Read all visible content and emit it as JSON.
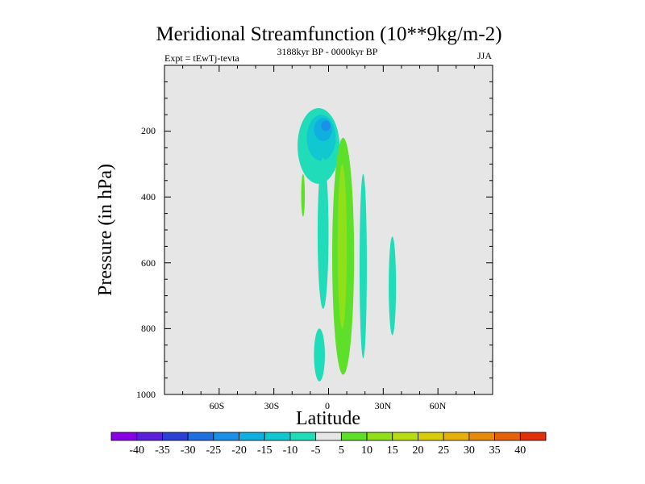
{
  "chart_data": {
    "type": "contour",
    "title": "Meridional Streamfunction (10**9kg/m-2)",
    "experiment_label": "Expt = tEwTj-tevta",
    "period_label": "3188kyr BP - 0000kyr BP",
    "season_label": "JJA",
    "xlabel": "Latitude",
    "ylabel": "Pressure (in hPa)",
    "xlim": [
      -90,
      90
    ],
    "ylim": [
      1000,
      0
    ],
    "x_ticks": [
      {
        "value": -60,
        "label": "60S"
      },
      {
        "value": -30,
        "label": "30S"
      },
      {
        "value": 0,
        "label": "0"
      },
      {
        "value": 30,
        "label": "30N"
      },
      {
        "value": 60,
        "label": "60N"
      }
    ],
    "y_ticks": [
      {
        "value": 200,
        "label": "200"
      },
      {
        "value": 400,
        "label": "400"
      },
      {
        "value": 600,
        "label": "600"
      },
      {
        "value": 800,
        "label": "800"
      },
      {
        "value": 1000,
        "label": "1000"
      }
    ],
    "background_color": "#e6e6e6",
    "colorbar": {
      "labels": [
        "-40",
        "-35",
        "-30",
        "-25",
        "-20",
        "-15",
        "-10",
        "-5",
        "5",
        "10",
        "15",
        "20",
        "25",
        "30",
        "35",
        "40"
      ],
      "colors": [
        "#8a00e6",
        "#5b1fd9",
        "#2e3fd6",
        "#1f6fe0",
        "#1a90e6",
        "#0fb0e0",
        "#12c8d0",
        "#20dcb8",
        "#e6e6e6",
        "#5ee02a",
        "#8fe01a",
        "#b8dc12",
        "#d8cc0a",
        "#e6b00a",
        "#e68a0a",
        "#e6620a",
        "#e0300a"
      ]
    },
    "regions": [
      {
        "value": -7.5,
        "lat_range": [
          -17,
          6
        ],
        "p_range": [
          130,
          360
        ],
        "desc": "upper tropical negative cell"
      },
      {
        "value": -12.5,
        "lat_range": [
          -12,
          4
        ],
        "p_range": [
          150,
          290
        ]
      },
      {
        "value": -17.5,
        "lat_range": [
          -8,
          2
        ],
        "p_range": [
          160,
          230
        ]
      },
      {
        "value": -22.5,
        "lat_range": [
          -4,
          1
        ],
        "p_range": [
          168,
          200
        ]
      },
      {
        "value": -7.5,
        "lat_range": [
          -6,
          0
        ],
        "p_range": [
          280,
          740
        ],
        "desc": "southern column negative"
      },
      {
        "value": 7.5,
        "lat_range": [
          2,
          14
        ],
        "p_range": [
          220,
          940
        ],
        "desc": "equatorial positive column"
      },
      {
        "value": 12.5,
        "lat_range": [
          5,
          10
        ],
        "p_range": [
          300,
          800
        ]
      },
      {
        "value": 7.5,
        "lat_range": [
          -15,
          -13
        ],
        "p_range": [
          330,
          460
        ],
        "desc": "small positive streak"
      },
      {
        "value": -7.5,
        "lat_range": [
          17,
          21
        ],
        "p_range": [
          330,
          890
        ],
        "desc": "northern negative streak"
      },
      {
        "value": -7.5,
        "lat_range": [
          33,
          37
        ],
        "p_range": [
          520,
          820
        ],
        "desc": "far northern negative streak"
      },
      {
        "value": -7.5,
        "lat_range": [
          -8,
          -2
        ],
        "p_range": [
          800,
          960
        ],
        "desc": "lower negative blob"
      }
    ]
  }
}
